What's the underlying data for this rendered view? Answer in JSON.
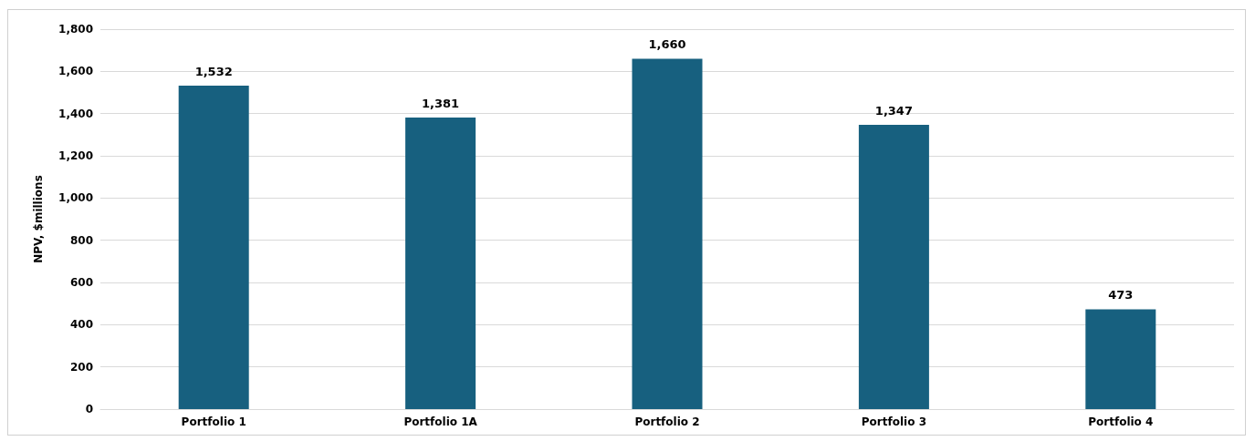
{
  "chart_data": {
    "type": "bar",
    "ylabel": "NPV, $millions",
    "categories": [
      "Portfolio 1",
      "Portfolio 1A",
      "Portfolio 2",
      "Portfolio 3",
      "Portfolio 4"
    ],
    "values": [
      1532,
      1381,
      1660,
      1347,
      473
    ],
    "value_labels": [
      "1,532",
      "1,381",
      "1,660",
      "1,347",
      "473"
    ],
    "color": "#17607f",
    "ylim": [
      0,
      1800
    ],
    "yticks": [
      0,
      200,
      400,
      600,
      800,
      {
        "value": 1000,
        "label": "1,000"
      },
      {
        "value": 1200,
        "label": "1,200"
      },
      {
        "value": 1400,
        "label": "1,400"
      },
      {
        "value": 1600,
        "label": "1,600"
      },
      {
        "value": 1800,
        "label": "1,800"
      }
    ],
    "grid": "y"
  }
}
